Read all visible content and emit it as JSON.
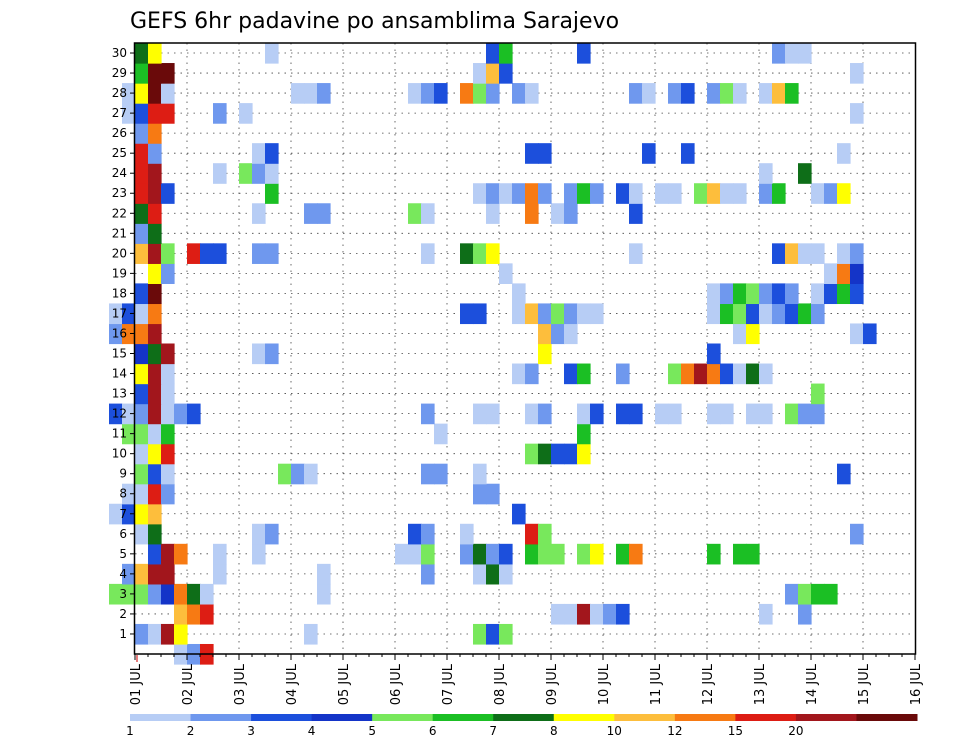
{
  "chart_data": {
    "type": "heatmap",
    "title": "GEFS 6hr padavine po ansamblima Sarajevo",
    "xlabel": "",
    "ylabel": "",
    "x_ticks": [
      "01 JUL",
      "02 JUL",
      "03 JUL",
      "04 JUL",
      "05 JUL",
      "06 JUL",
      "07 JUL",
      "08 JUL",
      "09 JUL",
      "10 JUL",
      "11 JUL",
      "12 JUL",
      "13 JUL",
      "14 JUL",
      "15 JUL",
      "16 JUL"
    ],
    "y_ticks": [
      "1",
      "2",
      "3",
      "4",
      "5",
      "6",
      "7",
      "8",
      "9",
      "10",
      "11",
      "12",
      "13",
      "14",
      "15",
      "16",
      "17",
      "18",
      "19",
      "20",
      "21",
      "22",
      "23",
      "24",
      "25",
      "26",
      "27",
      "28",
      "29",
      "30"
    ],
    "xlim": [
      "01 JUL",
      "16 JUL"
    ],
    "ylim": [
      0,
      30
    ],
    "grid": true,
    "colorbar_levels": [
      "1",
      "2",
      "3",
      "4",
      "5",
      "6",
      "7",
      "8",
      "10",
      "12",
      "15",
      "20"
    ],
    "colorbar_colors": [
      "#b7cdf5",
      "#6f98ee",
      "#1c4fdc",
      "#1434c8",
      "#78e85c",
      "#1bbf24",
      "#0e6e18",
      "#ffff00",
      "#fdbe3c",
      "#f77a13",
      "#dd1d14",
      "#a2161c",
      "#6a0a0a"
    ],
    "cells": [
      [
        0,
        1.875,
        1
      ],
      [
        0,
        2.125,
        2
      ],
      [
        0,
        2.375,
        11
      ],
      [
        1,
        1.125,
        2
      ],
      [
        1,
        1.375,
        1
      ],
      [
        1,
        1.625,
        12
      ],
      [
        1,
        1.875,
        8
      ],
      [
        1,
        4.375,
        1
      ],
      [
        1,
        7.625,
        5
      ],
      [
        1,
        7.875,
        3
      ],
      [
        1,
        8.125,
        5
      ],
      [
        2,
        1.875,
        9
      ],
      [
        2,
        2.125,
        10
      ],
      [
        2,
        2.375,
        11
      ],
      [
        2,
        9.125,
        1
      ],
      [
        2,
        9.375,
        1
      ],
      [
        2,
        9.625,
        12
      ],
      [
        2,
        9.875,
        1
      ],
      [
        2,
        10.125,
        2
      ],
      [
        2,
        10.375,
        3
      ],
      [
        2,
        13.125,
        1
      ],
      [
        2,
        13.875,
        2
      ],
      [
        3,
        0.625,
        5
      ],
      [
        3,
        0.875,
        5
      ],
      [
        3,
        1.125,
        5
      ],
      [
        3,
        1.375,
        2
      ],
      [
        3,
        1.625,
        4
      ],
      [
        3,
        1.875,
        10
      ],
      [
        3,
        2.125,
        7
      ],
      [
        3,
        2.375,
        1
      ],
      [
        3,
        4.625,
        1
      ],
      [
        3,
        13.625,
        2
      ],
      [
        3,
        13.875,
        5
      ],
      [
        3,
        14.125,
        6
      ],
      [
        3,
        14.375,
        6
      ],
      [
        4,
        0.875,
        2
      ],
      [
        4,
        1.125,
        9
      ],
      [
        4,
        1.375,
        12
      ],
      [
        4,
        1.625,
        12
      ],
      [
        4,
        2.625,
        1
      ],
      [
        4,
        4.625,
        1
      ],
      [
        4,
        6.625,
        2
      ],
      [
        4,
        7.625,
        1
      ],
      [
        4,
        7.875,
        7
      ],
      [
        4,
        8.125,
        1
      ],
      [
        5,
        1.375,
        3
      ],
      [
        5,
        1.625,
        12
      ],
      [
        5,
        1.875,
        10
      ],
      [
        5,
        2.625,
        1
      ],
      [
        5,
        3.375,
        1
      ],
      [
        5,
        6.125,
        1
      ],
      [
        5,
        6.375,
        1
      ],
      [
        5,
        6.625,
        5
      ],
      [
        5,
        7.375,
        2
      ],
      [
        5,
        7.625,
        7
      ],
      [
        5,
        7.875,
        2
      ],
      [
        5,
        8.125,
        3
      ],
      [
        5,
        8.625,
        6
      ],
      [
        5,
        8.875,
        5
      ],
      [
        5,
        9.125,
        5
      ],
      [
        5,
        9.625,
        5
      ],
      [
        5,
        9.875,
        8
      ],
      [
        5,
        10.375,
        6
      ],
      [
        5,
        10.625,
        10
      ],
      [
        5,
        12.125,
        6
      ],
      [
        5,
        12.625,
        6
      ],
      [
        5,
        12.875,
        6
      ],
      [
        6,
        1.125,
        1
      ],
      [
        6,
        1.375,
        7
      ],
      [
        6,
        3.375,
        1
      ],
      [
        6,
        3.625,
        2
      ],
      [
        6,
        6.375,
        3
      ],
      [
        6,
        6.625,
        2
      ],
      [
        6,
        7.375,
        1
      ],
      [
        6,
        8.625,
        11
      ],
      [
        6,
        8.875,
        5
      ],
      [
        6,
        14.875,
        2
      ],
      [
        7,
        0.625,
        1
      ],
      [
        7,
        0.875,
        3
      ],
      [
        7,
        1.125,
        8
      ],
      [
        7,
        1.375,
        9
      ],
      [
        7,
        8.375,
        3
      ],
      [
        8,
        0.875,
        1
      ],
      [
        8,
        1.125,
        1
      ],
      [
        8,
        1.375,
        11
      ],
      [
        8,
        1.625,
        2
      ],
      [
        8,
        7.625,
        2
      ],
      [
        8,
        7.875,
        2
      ],
      [
        9,
        1.125,
        5
      ],
      [
        9,
        1.375,
        3
      ],
      [
        9,
        1.625,
        1
      ],
      [
        9,
        3.875,
        5
      ],
      [
        9,
        4.125,
        2
      ],
      [
        9,
        4.375,
        1
      ],
      [
        9,
        6.625,
        2
      ],
      [
        9,
        6.875,
        2
      ],
      [
        9,
        7.625,
        1
      ],
      [
        9,
        14.625,
        3
      ],
      [
        10,
        1.125,
        1
      ],
      [
        10,
        1.375,
        8
      ],
      [
        10,
        1.625,
        11
      ],
      [
        10,
        8.625,
        5
      ],
      [
        10,
        8.875,
        7
      ],
      [
        10,
        9.125,
        3
      ],
      [
        10,
        9.375,
        3
      ],
      [
        10,
        9.625,
        8
      ],
      [
        11,
        0.875,
        5
      ],
      [
        11,
        1.125,
        5
      ],
      [
        11,
        1.375,
        1
      ],
      [
        11,
        1.625,
        6
      ],
      [
        11,
        6.875,
        1
      ],
      [
        11,
        9.625,
        6
      ],
      [
        12,
        0.625,
        3
      ],
      [
        12,
        0.875,
        1
      ],
      [
        12,
        1.125,
        2
      ],
      [
        12,
        1.375,
        12
      ],
      [
        12,
        1.625,
        1
      ],
      [
        12,
        1.875,
        2
      ],
      [
        12,
        2.125,
        3
      ],
      [
        12,
        6.625,
        2
      ],
      [
        12,
        7.625,
        1
      ],
      [
        12,
        7.875,
        1
      ],
      [
        12,
        8.625,
        1
      ],
      [
        12,
        8.875,
        2
      ],
      [
        12,
        9.625,
        1
      ],
      [
        12,
        9.875,
        3
      ],
      [
        12,
        10.375,
        3
      ],
      [
        12,
        10.625,
        3
      ],
      [
        12,
        11.125,
        1
      ],
      [
        12,
        11.375,
        1
      ],
      [
        12,
        12.125,
        1
      ],
      [
        12,
        12.375,
        1
      ],
      [
        12,
        12.875,
        1
      ],
      [
        12,
        13.125,
        1
      ],
      [
        12,
        13.625,
        5
      ],
      [
        12,
        13.875,
        2
      ],
      [
        12,
        14.125,
        2
      ],
      [
        13,
        1.125,
        3
      ],
      [
        13,
        1.375,
        12
      ],
      [
        13,
        1.625,
        1
      ],
      [
        13,
        14.125,
        5
      ],
      [
        14,
        1.125,
        8
      ],
      [
        14,
        1.375,
        12
      ],
      [
        14,
        1.625,
        1
      ],
      [
        14,
        8.375,
        1
      ],
      [
        14,
        8.625,
        2
      ],
      [
        14,
        9.375,
        3
      ],
      [
        14,
        9.625,
        6
      ],
      [
        14,
        10.375,
        2
      ],
      [
        14,
        11.375,
        5
      ],
      [
        14,
        11.625,
        10
      ],
      [
        14,
        11.875,
        12
      ],
      [
        14,
        12.125,
        10
      ],
      [
        14,
        12.375,
        3
      ],
      [
        14,
        12.625,
        1
      ],
      [
        14,
        12.875,
        7
      ],
      [
        14,
        13.125,
        1
      ],
      [
        15,
        1.125,
        4
      ],
      [
        15,
        1.375,
        7
      ],
      [
        15,
        1.625,
        12
      ],
      [
        15,
        3.375,
        1
      ],
      [
        15,
        3.625,
        2
      ],
      [
        15,
        8.875,
        8
      ],
      [
        15,
        12.125,
        3
      ],
      [
        16,
        0.625,
        2
      ],
      [
        16,
        0.875,
        10
      ],
      [
        16,
        1.125,
        10
      ],
      [
        16,
        1.375,
        12
      ],
      [
        16,
        8.875,
        9
      ],
      [
        16,
        9.125,
        2
      ],
      [
        16,
        9.375,
        1
      ],
      [
        16,
        12.625,
        1
      ],
      [
        16,
        12.875,
        8
      ],
      [
        16,
        14.875,
        1
      ],
      [
        16,
        15.125,
        3
      ],
      [
        17,
        0.625,
        1
      ],
      [
        17,
        0.875,
        3
      ],
      [
        17,
        1.125,
        1
      ],
      [
        17,
        1.375,
        10
      ],
      [
        17,
        7.375,
        3
      ],
      [
        17,
        7.625,
        3
      ],
      [
        17,
        8.375,
        1
      ],
      [
        17,
        8.625,
        9
      ],
      [
        17,
        8.875,
        2
      ],
      [
        17,
        9.125,
        5
      ],
      [
        17,
        9.375,
        2
      ],
      [
        17,
        9.625,
        1
      ],
      [
        17,
        9.875,
        1
      ],
      [
        17,
        12.125,
        1
      ],
      [
        17,
        12.375,
        6
      ],
      [
        17,
        12.625,
        5
      ],
      [
        17,
        12.875,
        3
      ],
      [
        17,
        13.125,
        1
      ],
      [
        17,
        13.375,
        2
      ],
      [
        17,
        13.625,
        3
      ],
      [
        17,
        13.875,
        6
      ],
      [
        17,
        14.125,
        2
      ],
      [
        18,
        1.125,
        3
      ],
      [
        18,
        1.375,
        13
      ],
      [
        18,
        8.375,
        1
      ],
      [
        18,
        12.125,
        1
      ],
      [
        18,
        12.375,
        2
      ],
      [
        18,
        12.625,
        6
      ],
      [
        18,
        12.875,
        5
      ],
      [
        18,
        13.125,
        2
      ],
      [
        18,
        13.375,
        3
      ],
      [
        18,
        13.625,
        2
      ],
      [
        18,
        14.125,
        1
      ],
      [
        18,
        14.375,
        3
      ],
      [
        18,
        14.625,
        6
      ],
      [
        18,
        14.875,
        3
      ],
      [
        19,
        1.375,
        8
      ],
      [
        19,
        1.625,
        2
      ],
      [
        19,
        8.125,
        1
      ],
      [
        19,
        14.375,
        1
      ],
      [
        19,
        14.625,
        10
      ],
      [
        19,
        14.875,
        4
      ],
      [
        20,
        1.125,
        9
      ],
      [
        20,
        1.375,
        12
      ],
      [
        20,
        1.625,
        5
      ],
      [
        20,
        2.125,
        11
      ],
      [
        20,
        2.375,
        3
      ],
      [
        20,
        2.625,
        3
      ],
      [
        20,
        3.375,
        2
      ],
      [
        20,
        3.625,
        2
      ],
      [
        20,
        6.625,
        1
      ],
      [
        20,
        7.375,
        7
      ],
      [
        20,
        7.625,
        5
      ],
      [
        20,
        7.875,
        8
      ],
      [
        20,
        10.625,
        1
      ],
      [
        20,
        13.375,
        3
      ],
      [
        20,
        13.625,
        9
      ],
      [
        20,
        13.875,
        1
      ],
      [
        20,
        14.125,
        1
      ],
      [
        20,
        14.625,
        1
      ],
      [
        20,
        14.875,
        2
      ],
      [
        21,
        1.125,
        2
      ],
      [
        21,
        1.375,
        7
      ],
      [
        22,
        1.125,
        7
      ],
      [
        22,
        1.375,
        11
      ],
      [
        22,
        3.375,
        1
      ],
      [
        22,
        4.375,
        2
      ],
      [
        22,
        4.625,
        2
      ],
      [
        22,
        6.375,
        5
      ],
      [
        22,
        6.625,
        1
      ],
      [
        22,
        7.875,
        1
      ],
      [
        22,
        8.625,
        10
      ],
      [
        22,
        9.125,
        1
      ],
      [
        22,
        9.375,
        2
      ],
      [
        22,
        10.625,
        3
      ],
      [
        23,
        1.125,
        11
      ],
      [
        23,
        1.375,
        12
      ],
      [
        23,
        1.625,
        3
      ],
      [
        23,
        3.625,
        6
      ],
      [
        23,
        7.625,
        1
      ],
      [
        23,
        7.875,
        2
      ],
      [
        23,
        8.125,
        1
      ],
      [
        23,
        8.375,
        2
      ],
      [
        23,
        8.625,
        10
      ],
      [
        23,
        8.875,
        2
      ],
      [
        23,
        9.375,
        2
      ],
      [
        23,
        9.625,
        6
      ],
      [
        23,
        9.875,
        2
      ],
      [
        23,
        10.375,
        3
      ],
      [
        23,
        10.625,
        1
      ],
      [
        23,
        11.125,
        1
      ],
      [
        23,
        11.375,
        1
      ],
      [
        23,
        11.875,
        5
      ],
      [
        23,
        12.125,
        9
      ],
      [
        23,
        12.375,
        1
      ],
      [
        23,
        12.625,
        1
      ],
      [
        23,
        13.125,
        2
      ],
      [
        23,
        13.375,
        6
      ],
      [
        23,
        14.125,
        1
      ],
      [
        23,
        14.375,
        2
      ],
      [
        23,
        14.625,
        8
      ],
      [
        24,
        1.125,
        11
      ],
      [
        24,
        1.375,
        12
      ],
      [
        24,
        2.625,
        1
      ],
      [
        24,
        3.125,
        5
      ],
      [
        24,
        3.375,
        2
      ],
      [
        24,
        3.625,
        1
      ],
      [
        24,
        13.125,
        1
      ],
      [
        24,
        13.875,
        7
      ],
      [
        25,
        1.125,
        11
      ],
      [
        25,
        1.375,
        2
      ],
      [
        25,
        3.375,
        1
      ],
      [
        25,
        3.625,
        3
      ],
      [
        25,
        8.625,
        3
      ],
      [
        25,
        8.875,
        3
      ],
      [
        25,
        10.875,
        3
      ],
      [
        25,
        11.625,
        3
      ],
      [
        25,
        14.625,
        1
      ],
      [
        26,
        1.125,
        2
      ],
      [
        26,
        1.375,
        10
      ],
      [
        27,
        0.875,
        1
      ],
      [
        27,
        1.125,
        3
      ],
      [
        27,
        1.375,
        11
      ],
      [
        27,
        1.625,
        11
      ],
      [
        27,
        2.625,
        2
      ],
      [
        27,
        3.125,
        1
      ],
      [
        27,
        14.875,
        1
      ],
      [
        28,
        0.875,
        1
      ],
      [
        28,
        1.125,
        8
      ],
      [
        28,
        1.375,
        13
      ],
      [
        28,
        1.625,
        1
      ],
      [
        28,
        4.125,
        1
      ],
      [
        28,
        4.375,
        1
      ],
      [
        28,
        4.625,
        2
      ],
      [
        28,
        6.375,
        1
      ],
      [
        28,
        6.625,
        2
      ],
      [
        28,
        6.875,
        3
      ],
      [
        28,
        7.375,
        10
      ],
      [
        28,
        7.625,
        5
      ],
      [
        28,
        7.875,
        2
      ],
      [
        28,
        8.375,
        2
      ],
      [
        28,
        8.625,
        1
      ],
      [
        28,
        10.625,
        2
      ],
      [
        28,
        10.875,
        1
      ],
      [
        28,
        11.375,
        2
      ],
      [
        28,
        11.625,
        3
      ],
      [
        28,
        12.125,
        2
      ],
      [
        28,
        12.375,
        5
      ],
      [
        28,
        12.625,
        1
      ],
      [
        28,
        13.125,
        1
      ],
      [
        28,
        13.375,
        9
      ],
      [
        28,
        13.625,
        6
      ],
      [
        29,
        1.125,
        6
      ],
      [
        29,
        1.375,
        13
      ],
      [
        29,
        1.625,
        13
      ],
      [
        29,
        7.625,
        1
      ],
      [
        29,
        7.875,
        9
      ],
      [
        29,
        8.125,
        3
      ],
      [
        29,
        14.875,
        1
      ],
      [
        30,
        1.125,
        7
      ],
      [
        30,
        1.375,
        8
      ],
      [
        30,
        3.625,
        1
      ],
      [
        30,
        7.875,
        3
      ],
      [
        30,
        8.125,
        6
      ],
      [
        30,
        9.625,
        3
      ],
      [
        30,
        13.375,
        2
      ],
      [
        30,
        13.625,
        1
      ],
      [
        30,
        13.875,
        1
      ]
    ]
  }
}
